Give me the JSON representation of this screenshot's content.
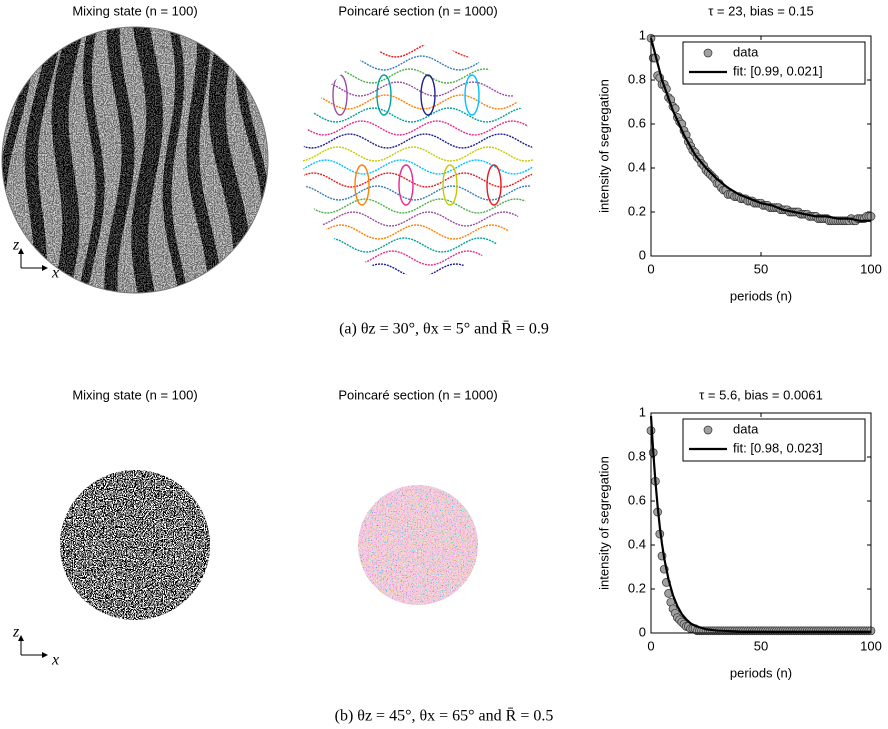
{
  "panels": [
    {
      "mixing_title": "Mixing state (n = 100)",
      "poincare_title": "Poincaré section (n = 1000)",
      "axis_z": "z",
      "axis_x": "x",
      "caption": "(a) θz = 30°, θx = 5° and R̄ = 0.9",
      "chart_data": {
        "type": "scatter",
        "title": "τ = 23, bias = 0.15",
        "xlabel": "periods (n)",
        "ylabel": "intensity of segregation",
        "x": [
          0,
          1,
          2,
          3,
          4,
          5,
          6,
          7,
          8,
          9,
          10,
          11,
          12,
          13,
          14,
          15,
          16,
          17,
          18,
          19,
          20,
          21,
          22,
          23,
          24,
          25,
          26,
          27,
          28,
          29,
          30,
          31,
          32,
          33,
          34,
          35,
          36,
          37,
          38,
          39,
          40,
          41,
          42,
          43,
          44,
          45,
          46,
          47,
          48,
          49,
          50,
          51,
          52,
          53,
          54,
          55,
          56,
          57,
          58,
          59,
          60,
          61,
          62,
          63,
          64,
          65,
          66,
          67,
          68,
          69,
          70,
          71,
          72,
          73,
          74,
          75,
          76,
          77,
          78,
          79,
          80,
          81,
          82,
          83,
          84,
          85,
          86,
          87,
          88,
          89,
          90,
          91,
          92,
          93,
          94,
          95,
          96,
          97,
          98,
          99,
          100
        ],
        "series": [
          {
            "name": "data",
            "color": "#a0a0a0",
            "mode": "markers",
            "values": [
              0.99,
              0.9,
              0.9,
              0.82,
              0.81,
              0.78,
              0.78,
              0.76,
              0.72,
              0.71,
              0.68,
              0.67,
              0.63,
              0.61,
              0.6,
              0.57,
              0.55,
              0.52,
              0.5,
              0.48,
              0.47,
              0.45,
              0.44,
              0.42,
              0.41,
              0.39,
              0.38,
              0.37,
              0.36,
              0.35,
              0.33,
              0.33,
              0.31,
              0.3,
              0.3,
              0.28,
              0.28,
              0.28,
              0.27,
              0.27,
              0.27,
              0.26,
              0.26,
              0.26,
              0.25,
              0.25,
              0.25,
              0.24,
              0.24,
              0.24,
              0.24,
              0.23,
              0.23,
              0.23,
              0.22,
              0.22,
              0.22,
              0.22,
              0.22,
              0.21,
              0.21,
              0.21,
              0.21,
              0.2,
              0.2,
              0.2,
              0.2,
              0.2,
              0.19,
              0.19,
              0.19,
              0.19,
              0.18,
              0.18,
              0.18,
              0.18,
              0.17,
              0.17,
              0.17,
              0.17,
              0.17,
              0.16,
              0.16,
              0.16,
              0.16,
              0.16,
              0.16,
              0.16,
              0.16,
              0.16,
              0.16,
              0.17,
              0.16,
              0.16,
              0.17,
              0.17,
              0.17,
              0.17,
              0.18,
              0.18,
              0.18
            ]
          },
          {
            "name": "fit: [0.99, 0.021]",
            "color": "#000000",
            "mode": "line",
            "x": [
              0,
              5,
              10,
              15,
              20,
              25,
              30,
              35,
              40,
              45,
              50,
              55,
              60,
              65,
              70,
              75,
              80,
              85,
              90,
              95,
              100
            ],
            "values": [
              0.99,
              0.8,
              0.66,
              0.55,
              0.46,
              0.4,
              0.35,
              0.31,
              0.28,
              0.26,
              0.24,
              0.23,
              0.21,
              0.2,
              0.19,
              0.18,
              0.18,
              0.17,
              0.17,
              0.16,
              0.16
            ]
          }
        ],
        "xlim": [
          0,
          100
        ],
        "ylim": [
          0,
          1
        ],
        "xticks": [
          0,
          50,
          100
        ],
        "yticks": [
          0,
          0.2,
          0.4,
          0.6,
          0.8,
          1
        ]
      }
    },
    {
      "mixing_title": "Mixing state (n = 100)",
      "poincare_title": "Poincaré section (n = 1000)",
      "axis_z": "z",
      "axis_x": "x",
      "caption": "(b) θz = 45°, θx = 65° and R̄ = 0.5",
      "chart_data": {
        "type": "scatter",
        "title": "τ = 5.6, bias = 0.0061",
        "xlabel": "periods (n)",
        "ylabel": "intensity of segregation",
        "x": [
          0,
          1,
          2,
          3,
          4,
          5,
          6,
          7,
          8,
          9,
          10,
          11,
          12,
          13,
          14,
          15,
          16,
          17,
          18,
          19,
          20,
          21,
          22,
          23,
          24,
          25,
          26,
          27,
          28,
          29,
          30,
          31,
          32,
          33,
          34,
          35,
          36,
          37,
          38,
          39,
          40,
          41,
          42,
          43,
          44,
          45,
          46,
          47,
          48,
          49,
          50,
          51,
          52,
          53,
          54,
          55,
          56,
          57,
          58,
          59,
          60,
          61,
          62,
          63,
          64,
          65,
          66,
          67,
          68,
          69,
          70,
          71,
          72,
          73,
          74,
          75,
          76,
          77,
          78,
          79,
          80,
          81,
          82,
          83,
          84,
          85,
          86,
          87,
          88,
          89,
          90,
          91,
          92,
          93,
          94,
          95,
          96,
          97,
          98,
          99,
          100
        ],
        "series": [
          {
            "name": "data",
            "color": "#a0a0a0",
            "mode": "markers",
            "values": [
              0.92,
              0.82,
              0.69,
              0.55,
              0.45,
              0.35,
              0.29,
              0.23,
              0.18,
              0.14,
              0.11,
              0.09,
              0.07,
              0.06,
              0.05,
              0.04,
              0.03,
              0.03,
              0.02,
              0.02,
              0.02,
              0.01,
              0.01,
              0.01,
              0.01,
              0.01,
              0.01,
              0.01,
              0.01,
              0.01,
              0.01,
              0.01,
              0.01,
              0.01,
              0.01,
              0.01,
              0.01,
              0.01,
              0.01,
              0.01,
              0.01,
              0.01,
              0.01,
              0.01,
              0.01,
              0.01,
              0.01,
              0.01,
              0.01,
              0.01,
              0.01,
              0.01,
              0.01,
              0.01,
              0.01,
              0.01,
              0.01,
              0.01,
              0.01,
              0.01,
              0.01,
              0.01,
              0.01,
              0.01,
              0.01,
              0.01,
              0.01,
              0.01,
              0.01,
              0.01,
              0.01,
              0.01,
              0.01,
              0.01,
              0.01,
              0.01,
              0.01,
              0.01,
              0.01,
              0.01,
              0.01,
              0.01,
              0.01,
              0.01,
              0.01,
              0.01,
              0.01,
              0.01,
              0.01,
              0.01,
              0.01,
              0.01,
              0.01,
              0.01,
              0.01,
              0.01,
              0.01,
              0.01,
              0.01,
              0.01,
              0.01
            ]
          },
          {
            "name": "fit: [0.98, 0.023]",
            "color": "#000000",
            "mode": "line",
            "x": [
              0,
              1,
              2,
              3,
              4,
              5,
              6,
              8,
              10,
              12,
              14,
              16,
              18,
              20,
              25,
              30,
              40,
              50,
              60,
              70,
              80,
              90,
              100
            ],
            "values": [
              0.986,
              0.826,
              0.69,
              0.577,
              0.482,
              0.405,
              0.34,
              0.242,
              0.171,
              0.122,
              0.086,
              0.062,
              0.044,
              0.033,
              0.017,
              0.011,
              0.007,
              0.006,
              0.006,
              0.006,
              0.006,
              0.006,
              0.006
            ]
          }
        ],
        "xlim": [
          0,
          100
        ],
        "ylim": [
          0,
          1
        ],
        "xticks": [
          0,
          50,
          100
        ],
        "yticks": [
          0,
          0.2,
          0.4,
          0.6,
          0.8,
          1
        ]
      }
    }
  ]
}
